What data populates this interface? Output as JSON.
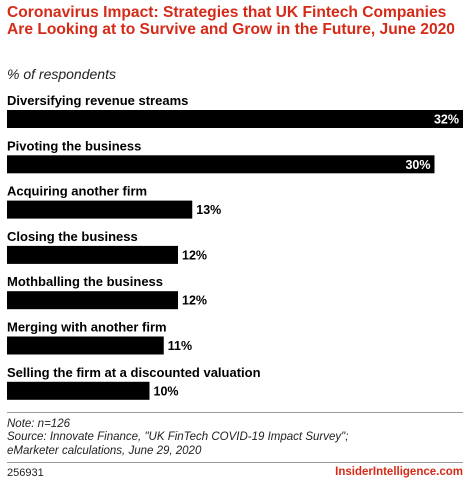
{
  "header": {
    "title": "Coronavirus Impact: Strategies that UK Fintech Companies Are Looking at to Survive and Grow in the Future, June 2020",
    "subtitle": "% of respondents"
  },
  "chart_data": {
    "type": "bar",
    "orientation": "horizontal",
    "categories": [
      "Diversifying revenue streams",
      "Pivoting the business",
      "Acquiring another firm",
      "Closing the business",
      "Mothballing the business",
      "Merging with another firm",
      "Selling the firm at a discounted valuation"
    ],
    "values": [
      32,
      30,
      13,
      12,
      12,
      11,
      10
    ],
    "value_labels": [
      "32%",
      "30%",
      "13%",
      "12%",
      "12%",
      "11%",
      "10%"
    ],
    "title": "Coronavirus Impact: Strategies that UK Fintech Companies Are Looking at to Survive and Grow in the Future, June 2020",
    "subtitle": "% of respondents",
    "xlabel": "",
    "ylabel": "",
    "xlim": [
      0,
      32
    ],
    "grid": false,
    "bar_color": "#000000",
    "value_label_color_inside": "#ffffff",
    "value_label_color_outside": "#000000"
  },
  "footer": {
    "note": "Note: n=126",
    "source_line1": "Source: Innovate Finance, \"UK FinTech COVID-19 Impact Survey\";",
    "source_line2": "eMarketer calculations, June 29, 2020",
    "chart_id": "256931",
    "brand": "InsiderIntelligence.com"
  },
  "colors": {
    "title": "#d62a18",
    "brand": "#d62a18",
    "bars": "#000000",
    "rule": "#9a9a9a"
  }
}
